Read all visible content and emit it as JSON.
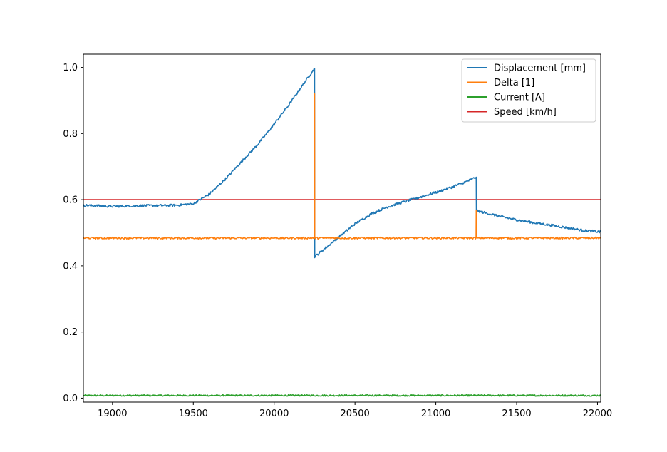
{
  "chart_data": {
    "type": "line",
    "title": "",
    "xlabel": "",
    "ylabel": "",
    "xlim": [
      18820,
      22020
    ],
    "ylim": [
      -0.012,
      1.04
    ],
    "x_ticks": [
      19000,
      19500,
      20000,
      20500,
      21000,
      21500,
      22000
    ],
    "y_ticks": [
      0.0,
      0.2,
      0.4,
      0.6,
      0.8,
      1.0
    ],
    "x_tick_labels": [
      "19000",
      "19500",
      "20000",
      "20500",
      "21000",
      "21500",
      "22000"
    ],
    "y_tick_labels": [
      "0.0",
      "0.2",
      "0.4",
      "0.6",
      "0.8",
      "1.0"
    ],
    "grid": false,
    "legend_position": "top-right",
    "series": [
      {
        "name": "Displacement [mm]",
        "color": "#1f77b4",
        "points": [
          [
            18820,
            0.583
          ],
          [
            19000,
            0.58
          ],
          [
            19200,
            0.582
          ],
          [
            19400,
            0.583
          ],
          [
            19500,
            0.588
          ],
          [
            19600,
            0.617
          ],
          [
            19700,
            0.663
          ],
          [
            19800,
            0.716
          ],
          [
            19900,
            0.768
          ],
          [
            20000,
            0.828
          ],
          [
            20100,
            0.893
          ],
          [
            20200,
            0.963
          ],
          [
            20250,
            0.997
          ],
          [
            20251,
            0.428
          ],
          [
            20300,
            0.447
          ],
          [
            20400,
            0.487
          ],
          [
            20500,
            0.527
          ],
          [
            20600,
            0.557
          ],
          [
            20700,
            0.578
          ],
          [
            20800,
            0.593
          ],
          [
            20900,
            0.607
          ],
          [
            21000,
            0.622
          ],
          [
            21100,
            0.638
          ],
          [
            21200,
            0.657
          ],
          [
            21250,
            0.668
          ],
          [
            21251,
            0.566
          ],
          [
            21300,
            0.561
          ],
          [
            21400,
            0.549
          ],
          [
            21500,
            0.539
          ],
          [
            21600,
            0.531
          ],
          [
            21700,
            0.524
          ],
          [
            21800,
            0.516
          ],
          [
            21900,
            0.508
          ],
          [
            22020,
            0.502
          ]
        ]
      },
      {
        "name": "Delta [1]",
        "color": "#ff7f0e",
        "points": [
          [
            18820,
            0.484
          ],
          [
            20249,
            0.484
          ],
          [
            20250,
            0.92
          ],
          [
            20251,
            0.484
          ],
          [
            21249,
            0.484
          ],
          [
            21250,
            0.568
          ],
          [
            21251,
            0.484
          ],
          [
            22020,
            0.484
          ]
        ]
      },
      {
        "name": "Current [A]",
        "color": "#2ca02c",
        "points": [
          [
            18820,
            0.008
          ],
          [
            22020,
            0.008
          ]
        ]
      },
      {
        "name": "Speed [km/h]",
        "color": "#d62728",
        "points": [
          [
            18820,
            0.6
          ],
          [
            22020,
            0.6
          ]
        ]
      }
    ]
  }
}
